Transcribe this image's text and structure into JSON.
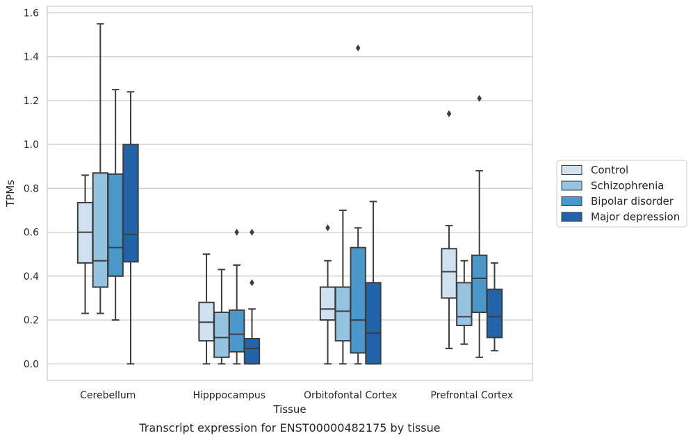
{
  "chart_data": {
    "type": "box",
    "xlabel": "Tissue",
    "ylabel": "TPMs",
    "caption": "Transcript expression for ENST00000482175 by tissue",
    "ylim": [
      -0.075,
      1.63
    ],
    "yticks": [
      0.0,
      0.2,
      0.4,
      0.6,
      0.8,
      1.0,
      1.2,
      1.4,
      1.6
    ],
    "ytick_labels": [
      "0.0",
      "0.2",
      "0.4",
      "0.6",
      "0.8",
      "1.0",
      "1.2",
      "1.4",
      "1.6"
    ],
    "categories": [
      "Cerebellum",
      "Hipppocampus",
      "Orbitofontal Cortex",
      "Prefrontal Cortex"
    ],
    "grid": "horizontal",
    "legend_position": "right",
    "series": [
      {
        "name": "Control",
        "color": "#d0e1f2",
        "boxes": [
          {
            "whislo": 0.23,
            "q1": 0.46,
            "med": 0.6,
            "q3": 0.735,
            "whishi": 0.86,
            "fliers": []
          },
          {
            "whislo": 0.0,
            "q1": 0.105,
            "med": 0.19,
            "q3": 0.28,
            "whishi": 0.5,
            "fliers": []
          },
          {
            "whislo": 0.0,
            "q1": 0.2,
            "med": 0.25,
            "q3": 0.35,
            "whishi": 0.47,
            "fliers": [
              0.62
            ]
          },
          {
            "whislo": 0.07,
            "q1": 0.3,
            "med": 0.42,
            "q3": 0.525,
            "whishi": 0.63,
            "fliers": [
              1.14
            ]
          }
        ]
      },
      {
        "name": "Schizophrenia",
        "color": "#94c4df",
        "boxes": [
          {
            "whislo": 0.23,
            "q1": 0.35,
            "med": 0.47,
            "q3": 0.87,
            "whishi": 1.55,
            "fliers": []
          },
          {
            "whislo": 0.0,
            "q1": 0.03,
            "med": 0.12,
            "q3": 0.235,
            "whishi": 0.43,
            "fliers": []
          },
          {
            "whislo": 0.0,
            "q1": 0.105,
            "med": 0.24,
            "q3": 0.35,
            "whishi": 0.7,
            "fliers": []
          },
          {
            "whislo": 0.09,
            "q1": 0.175,
            "med": 0.215,
            "q3": 0.37,
            "whishi": 0.47,
            "fliers": []
          }
        ]
      },
      {
        "name": "Bipolar disorder",
        "color": "#4a98c9",
        "boxes": [
          {
            "whislo": 0.2,
            "q1": 0.4,
            "med": 0.53,
            "q3": 0.865,
            "whishi": 1.25,
            "fliers": []
          },
          {
            "whislo": 0.0,
            "q1": 0.055,
            "med": 0.135,
            "q3": 0.245,
            "whishi": 0.45,
            "fliers": [
              0.6
            ]
          },
          {
            "whislo": 0.0,
            "q1": 0.05,
            "med": 0.2,
            "q3": 0.53,
            "whishi": 0.62,
            "fliers": [
              1.44
            ]
          },
          {
            "whislo": 0.03,
            "q1": 0.235,
            "med": 0.39,
            "q3": 0.495,
            "whishi": 0.88,
            "fliers": [
              1.21
            ]
          }
        ]
      },
      {
        "name": "Major depression",
        "color": "#2264a9",
        "boxes": [
          {
            "whislo": 0.0,
            "q1": 0.465,
            "med": 0.59,
            "q3": 1.0,
            "whishi": 1.24,
            "fliers": []
          },
          {
            "whislo": 0.0,
            "q1": 0.0,
            "med": 0.07,
            "q3": 0.115,
            "whishi": 0.25,
            "fliers": [
              0.37,
              0.6
            ]
          },
          {
            "whislo": 0.0,
            "q1": 0.0,
            "med": 0.14,
            "q3": 0.37,
            "whishi": 0.74,
            "fliers": []
          },
          {
            "whislo": 0.06,
            "q1": 0.12,
            "med": 0.215,
            "q3": 0.34,
            "whishi": 0.46,
            "fliers": []
          }
        ]
      }
    ]
  }
}
